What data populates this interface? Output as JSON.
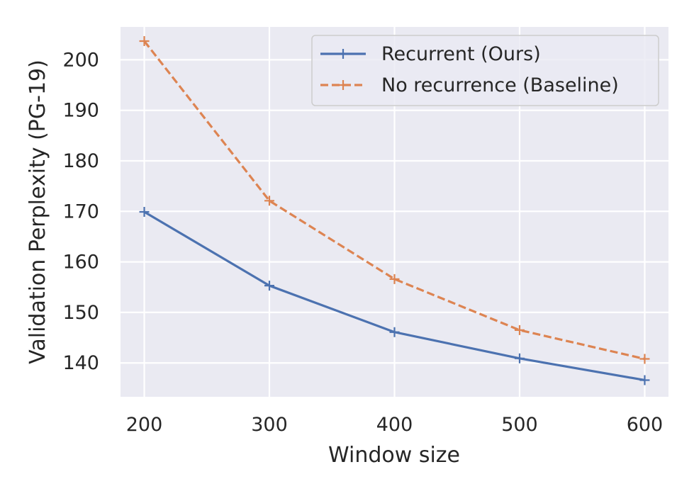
{
  "chart_data": {
    "type": "line",
    "xlabel": "Window size",
    "ylabel": "Validation Perplexity (PG-19)",
    "x": [
      200,
      300,
      400,
      500,
      600
    ],
    "xticks": [
      200,
      300,
      400,
      500,
      600
    ],
    "yticks": [
      140,
      150,
      160,
      170,
      180,
      190,
      200
    ],
    "xlim": [
      181,
      619
    ],
    "ylim": [
      133.3,
      206.5
    ],
    "grid": true,
    "legend_position": "top-right",
    "series": [
      {
        "name": "Recurrent (Ours)",
        "values": [
          169.9,
          155.3,
          146.1,
          140.9,
          136.6
        ],
        "color": "#4c72b0",
        "line_style": "solid",
        "marker": "plus"
      },
      {
        "name": "No recurrence (Baseline)",
        "values": [
          203.7,
          172.1,
          156.6,
          146.5,
          140.8
        ],
        "color": "#dd8452",
        "line_style": "dashed",
        "marker": "plus"
      }
    ],
    "colors": {
      "plot_background": "#eaeaf2",
      "grid": "#ffffff",
      "text": "#262626"
    }
  }
}
